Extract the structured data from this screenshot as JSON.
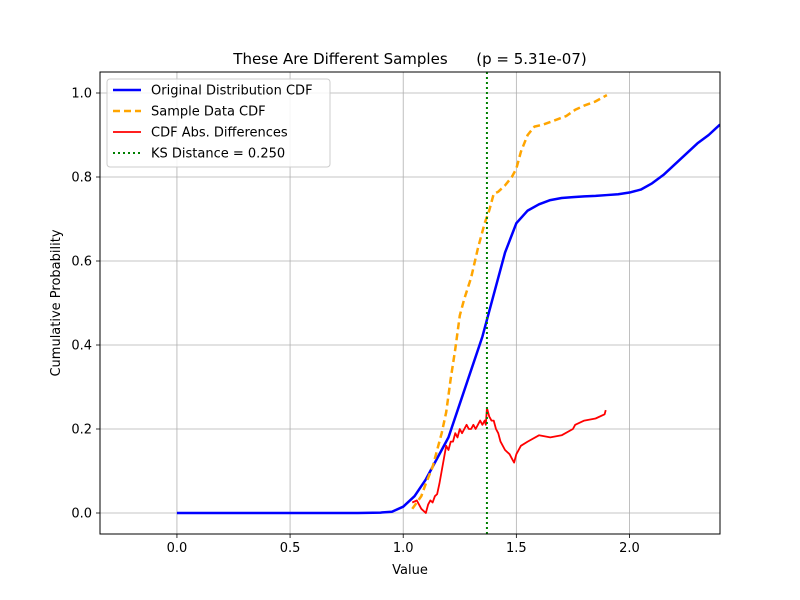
{
  "chart_data": {
    "type": "line",
    "title": "These Are Different Samples      (p = 5.31e-07)",
    "xlabel": "Value",
    "ylabel": "Cumulative Probability",
    "xlim": [
      -0.34,
      2.4
    ],
    "ylim": [
      -0.05,
      1.05
    ],
    "xticks": [
      0.0,
      0.5,
      1.0,
      1.5,
      2.0
    ],
    "xtick_labels": [
      "0.0",
      "0.5",
      "1.0",
      "1.5",
      "2.0"
    ],
    "yticks": [
      0.0,
      0.2,
      0.4,
      0.6,
      0.8,
      1.0
    ],
    "ytick_labels": [
      "0.0",
      "0.2",
      "0.4",
      "0.6",
      "0.8",
      "1.0"
    ],
    "grid": true,
    "legend_position": "top-left",
    "series": [
      {
        "name": "Original Distribution CDF",
        "color": "#0000ff",
        "style": "solid",
        "width": 2.5,
        "x": [
          0.0,
          0.2,
          0.4,
          0.6,
          0.8,
          0.9,
          0.95,
          1.0,
          1.05,
          1.1,
          1.15,
          1.2,
          1.25,
          1.3,
          1.35,
          1.4,
          1.45,
          1.5,
          1.55,
          1.6,
          1.65,
          1.7,
          1.75,
          1.8,
          1.85,
          1.9,
          1.95,
          2.0,
          2.05,
          2.1,
          2.15,
          2.2,
          2.25,
          2.3,
          2.35,
          2.4
        ],
        "y": [
          0.0,
          0.0,
          0.0,
          0.0,
          0.0,
          0.001,
          0.003,
          0.015,
          0.04,
          0.08,
          0.13,
          0.18,
          0.26,
          0.34,
          0.42,
          0.52,
          0.62,
          0.69,
          0.72,
          0.735,
          0.745,
          0.75,
          0.752,
          0.754,
          0.755,
          0.757,
          0.759,
          0.763,
          0.77,
          0.785,
          0.805,
          0.83,
          0.855,
          0.88,
          0.9,
          0.925
        ]
      },
      {
        "name": "Sample Data CDF",
        "color": "#ffa500",
        "style": "dashed",
        "width": 2.5,
        "x": [
          1.04,
          1.08,
          1.1,
          1.13,
          1.15,
          1.17,
          1.19,
          1.21,
          1.23,
          1.25,
          1.27,
          1.3,
          1.33,
          1.36,
          1.38,
          1.4,
          1.42,
          1.45,
          1.48,
          1.5,
          1.52,
          1.55,
          1.58,
          1.62,
          1.67,
          1.72,
          1.76,
          1.8,
          1.85,
          1.9
        ],
        "y": [
          0.01,
          0.04,
          0.07,
          0.11,
          0.15,
          0.19,
          0.24,
          0.32,
          0.39,
          0.47,
          0.51,
          0.56,
          0.63,
          0.69,
          0.72,
          0.76,
          0.765,
          0.78,
          0.8,
          0.82,
          0.86,
          0.9,
          0.92,
          0.925,
          0.935,
          0.945,
          0.96,
          0.97,
          0.98,
          0.995
        ]
      },
      {
        "name": "CDF Abs. Differences",
        "color": "#ff0000",
        "style": "solid",
        "width": 1.8,
        "x": [
          1.04,
          1.06,
          1.08,
          1.1,
          1.11,
          1.12,
          1.13,
          1.14,
          1.15,
          1.16,
          1.17,
          1.18,
          1.19,
          1.2,
          1.21,
          1.22,
          1.23,
          1.24,
          1.25,
          1.26,
          1.27,
          1.28,
          1.29,
          1.3,
          1.31,
          1.32,
          1.33,
          1.34,
          1.35,
          1.36,
          1.365,
          1.37,
          1.38,
          1.39,
          1.4,
          1.41,
          1.42,
          1.43,
          1.45,
          1.47,
          1.48,
          1.49,
          1.5,
          1.52,
          1.55,
          1.6,
          1.65,
          1.7,
          1.75,
          1.76,
          1.8,
          1.85,
          1.89,
          1.895
        ],
        "y": [
          0.025,
          0.03,
          0.01,
          0.0,
          0.02,
          0.03,
          0.025,
          0.04,
          0.045,
          0.07,
          0.1,
          0.13,
          0.16,
          0.15,
          0.17,
          0.17,
          0.19,
          0.18,
          0.2,
          0.19,
          0.2,
          0.21,
          0.2,
          0.2,
          0.21,
          0.2,
          0.21,
          0.22,
          0.21,
          0.22,
          0.21,
          0.25,
          0.23,
          0.22,
          0.22,
          0.2,
          0.19,
          0.17,
          0.15,
          0.14,
          0.13,
          0.12,
          0.14,
          0.16,
          0.17,
          0.185,
          0.18,
          0.185,
          0.2,
          0.21,
          0.22,
          0.225,
          0.235,
          0.245
        ]
      }
    ],
    "reference_lines": [
      {
        "name": "KS Distance = 0.250",
        "x": 1.37,
        "color": "#008000",
        "style": "dotted",
        "width": 2
      }
    ]
  }
}
